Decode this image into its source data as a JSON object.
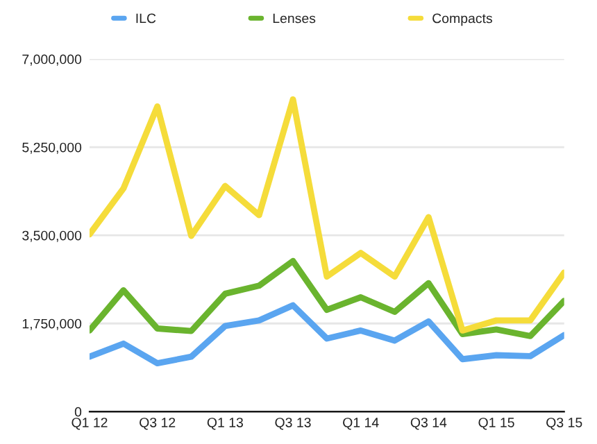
{
  "chart_data": {
    "type": "line",
    "categories": [
      "Q1 12",
      null,
      "Q3 12",
      null,
      "Q1 13",
      null,
      "Q3 13",
      null,
      "Q1 14",
      null,
      "Q3 14",
      null,
      "Q1 15",
      null,
      "Q3 15"
    ],
    "series": [
      {
        "name": "ILC",
        "color": "#5aa5f0",
        "values": [
          1090000,
          1350000,
          960000,
          1090000,
          1700000,
          1810000,
          2110000,
          1450000,
          1610000,
          1410000,
          1790000,
          1040000,
          1120000,
          1100000,
          1520000
        ]
      },
      {
        "name": "Lenses",
        "color": "#6ab42e",
        "values": [
          1610000,
          2410000,
          1650000,
          1600000,
          2340000,
          2500000,
          2990000,
          2020000,
          2270000,
          1980000,
          2550000,
          1540000,
          1630000,
          1500000,
          2200000
        ]
      },
      {
        "name": "Compacts",
        "color": "#f5dc3a",
        "values": [
          3520000,
          4430000,
          6060000,
          3490000,
          4480000,
          3900000,
          6200000,
          2680000,
          3150000,
          2680000,
          3860000,
          1610000,
          1810000,
          1810000,
          2760000
        ]
      }
    ],
    "ylim": [
      0,
      7000000
    ],
    "yticks": [
      0,
      {
        "value": 1750000,
        "label": "1,750,000"
      },
      {
        "value": 3500000,
        "label": "3,500,000"
      },
      {
        "value": 5250000,
        "label": "5,250,000"
      },
      {
        "value": 7000000,
        "label": "7,000,000"
      }
    ],
    "grid": "y",
    "legend": "top"
  }
}
